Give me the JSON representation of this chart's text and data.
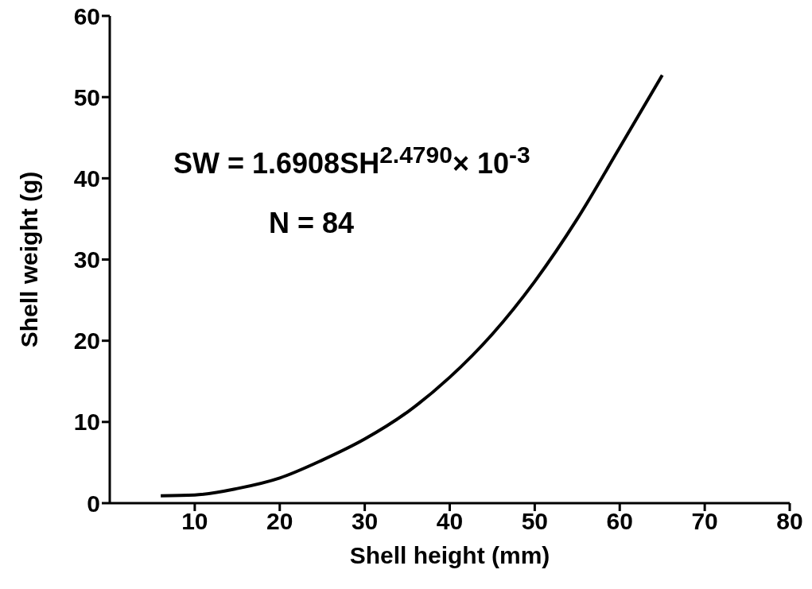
{
  "chart_data": {
    "type": "line",
    "xlabel": "Shell height (mm)",
    "ylabel": "Shell weight (g)",
    "x": [
      6,
      10,
      15,
      20,
      25,
      30,
      35,
      40,
      45,
      50,
      55,
      60,
      65
    ],
    "series": [
      {
        "color": "#000000",
        "values": [
          0.9,
          1,
          1.8,
          3.1,
          5.3,
          7.9,
          11.2,
          15.5,
          20.8,
          27.3,
          35,
          43.8,
          52.7
        ]
      }
    ],
    "xlim": [
      0,
      80
    ],
    "xticks": [
      10,
      20,
      30,
      40,
      50,
      60,
      70,
      80
    ],
    "ylim": [
      0,
      60
    ],
    "yticks": [
      0,
      10,
      20,
      30,
      40,
      50,
      60
    ],
    "annotations": [
      "SW = 1.6908SH$^{2.4790}$× 10$^{-3}$",
      "N = 84"
    ],
    "marker": "none",
    "line_style": "solid"
  }
}
